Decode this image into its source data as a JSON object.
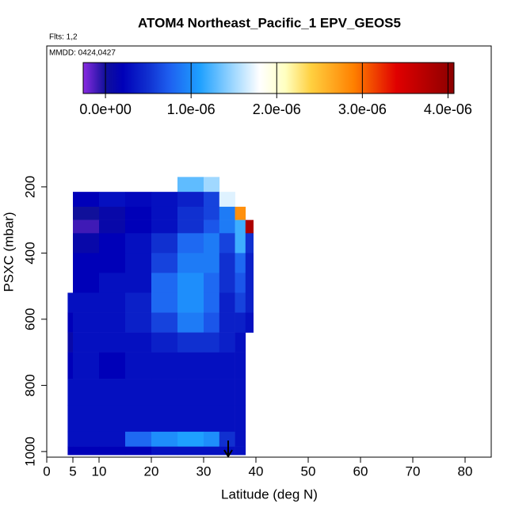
{
  "chart_data": {
    "type": "heatmap",
    "title": "ATOM4 Northeast_Pacific_1 EPV_GEOS5",
    "annotations": [
      "Flts: 1,2",
      "MMDD: 0424,0427"
    ],
    "x_label": "Latitude (deg N)",
    "y_label": "PSXC (mbar)",
    "xlim": [
      0,
      85
    ],
    "xticks": [
      0,
      5,
      10,
      20,
      30,
      40,
      50,
      60,
      70,
      80
    ],
    "ylim": [
      -226,
      1017
    ],
    "yticks": [
      200,
      400,
      600,
      800,
      1000
    ],
    "x_edges": [
      4,
      5,
      10,
      15,
      20,
      25,
      30,
      33,
      36,
      38,
      39.5
    ],
    "y_edges": [
      170,
      215,
      260,
      300,
      340,
      400,
      460,
      520,
      580,
      640,
      700,
      780,
      860,
      940,
      985,
      1010
    ],
    "z": [
      [
        null,
        null,
        null,
        null,
        null,
        1.3e-06,
        1.5e-06,
        null,
        null,
        null
      ],
      [
        null,
        2e-07,
        3e-07,
        2.5e-07,
        3e-07,
        4e-07,
        6e-07,
        1.7e-06,
        null,
        null
      ],
      [
        null,
        0,
        1e-07,
        2e-07,
        3e-07,
        5e-07,
        6e-07,
        9e-07,
        2.8e-06,
        null
      ],
      [
        null,
        -1e-07,
        1e-07,
        2e-07,
        3e-07,
        5e-07,
        7e-07,
        9e-07,
        1.2e-06,
        3.8e-06
      ],
      [
        null,
        1e-07,
        2e-07,
        3e-07,
        5e-07,
        8e-07,
        9e-07,
        6e-07,
        1.2e-06,
        5e-07
      ],
      [
        null,
        2e-07,
        2e-07,
        3e-07,
        6e-07,
        9e-07,
        9e-07,
        5e-07,
        8e-07,
        4e-07
      ],
      [
        null,
        2e-07,
        3e-07,
        3e-07,
        8e-07,
        1e-06,
        8e-07,
        5e-07,
        7e-07,
        4e-07
      ],
      [
        3e-07,
        3e-07,
        3e-07,
        4e-07,
        8e-07,
        1e-06,
        8e-07,
        4e-07,
        6e-07,
        4e-07
      ],
      [
        2e-07,
        3e-07,
        3e-07,
        4e-07,
        6e-07,
        9e-07,
        7e-07,
        4e-07,
        4e-07,
        3e-07
      ],
      [
        1e-07,
        3e-07,
        3e-07,
        3e-07,
        4e-07,
        5e-07,
        5e-07,
        4e-07,
        3e-07,
        null
      ],
      [
        2e-07,
        3e-07,
        2e-07,
        3e-07,
        3e-07,
        3e-07,
        3e-07,
        3e-07,
        3e-07,
        null
      ],
      [
        3e-07,
        3e-07,
        3e-07,
        3e-07,
        3e-07,
        3e-07,
        3e-07,
        3e-07,
        3e-07,
        null
      ],
      [
        3e-07,
        3e-07,
        3e-07,
        3e-07,
        3e-07,
        3e-07,
        3e-07,
        3e-07,
        3e-07,
        null
      ],
      [
        3e-07,
        3e-07,
        3e-07,
        8e-07,
        1e-06,
        1.1e-06,
        1e-06,
        5e-07,
        3e-07,
        null
      ],
      [
        2e-07,
        2e-07,
        2e-07,
        2e-07,
        3e-07,
        3e-07,
        3e-07,
        3e-07,
        3e-07,
        null
      ]
    ],
    "colorbar_lim": [
      -2.6e-07,
      4.07e-06
    ],
    "colorbar_ticks": [
      {
        "value": 0,
        "label": "0.0e+00"
      },
      {
        "value": 1e-06,
        "label": "1.0e-06"
      },
      {
        "value": 2e-06,
        "label": "2.0e-06"
      },
      {
        "value": 3e-06,
        "label": "3.0e-06"
      },
      {
        "value": 4e-06,
        "label": "4.0e-06"
      }
    ],
    "colorscale": [
      [
        -2.6e-07,
        "#8a2be2"
      ],
      [
        0,
        "#10109a"
      ],
      [
        2e-07,
        "#0000b8"
      ],
      [
        5e-07,
        "#1030d0"
      ],
      [
        7.5e-07,
        "#1e60f0"
      ],
      [
        1.1e-06,
        "#1ea0ff"
      ],
      [
        1.5e-06,
        "#a0d8ff"
      ],
      [
        1.8e-06,
        "#ffffff"
      ],
      [
        2.1e-06,
        "#ffffc0"
      ],
      [
        2.4e-06,
        "#ffd040"
      ],
      [
        2.9e-06,
        "#ff8000"
      ],
      [
        3.4e-06,
        "#e00000"
      ],
      [
        4.07e-06,
        "#8b0000"
      ]
    ]
  }
}
